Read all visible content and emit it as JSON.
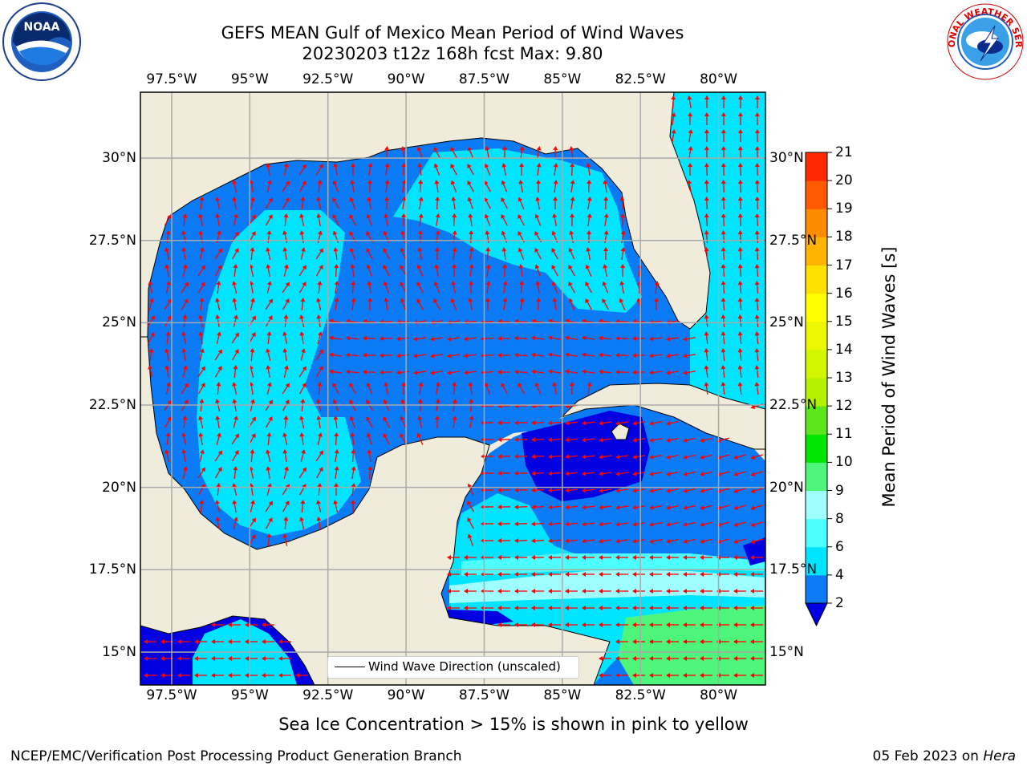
{
  "title": {
    "line1": "GEFS MEAN Gulf of Mexico Mean Period of Wind Waves",
    "line2": "20230203 t12z 168h fcst   Max: 9.80"
  },
  "map": {
    "lon_range": [
      -98.5,
      -78.5
    ],
    "lat_range": [
      14.0,
      32.0
    ],
    "lon_ticks": [
      "97.5°W",
      "95°W",
      "92.5°W",
      "90°W",
      "87.5°W",
      "85°W",
      "82.5°W",
      "80°W"
    ],
    "lon_values": [
      -97.5,
      -95,
      -92.5,
      -90,
      -87.5,
      -85,
      -82.5,
      -80
    ],
    "lat_ticks": [
      "15°N",
      "17.5°N",
      "20°N",
      "22.5°N",
      "25°N",
      "27.5°N",
      "30°N"
    ],
    "lat_values": [
      15,
      17.5,
      20,
      22.5,
      25,
      27.5,
      30
    ],
    "land_color": "#efecdc",
    "grid": true,
    "legend": {
      "label": "Wind Wave Direction (unscaled)",
      "placement": "lower-center"
    }
  },
  "colorbar": {
    "label": "Mean Period of Wind Waves [s]",
    "ticks": [
      "2",
      "4",
      "6",
      "8",
      "9",
      "10",
      "11",
      "12",
      "13",
      "14",
      "15",
      "16",
      "17",
      "18",
      "19",
      "20",
      "21"
    ],
    "levels": [
      2,
      4,
      6,
      8,
      9,
      10,
      11,
      12,
      13,
      14,
      15,
      16,
      17,
      18,
      19,
      20,
      21
    ],
    "colors": [
      "#0a7af5",
      "#00e5ff",
      "#4dffff",
      "#9fffff",
      "#4df57a",
      "#00e600",
      "#5ae61a",
      "#b4f000",
      "#d2f500",
      "#eaf700",
      "#ffff00",
      "#ffe100",
      "#ffb400",
      "#ff8c00",
      "#ff5a00",
      "#ff2a00"
    ],
    "extend_min_color": "#0000e0"
  },
  "note": "Sea Ice Concentration > 15% is shown in pink to yellow",
  "footer": {
    "left": "NCEP/EMC/Verification Post Processing Product Generation Branch",
    "right_prefix": "05 Feb 2023 on ",
    "right_machine": "Hera"
  },
  "logos": {
    "left": "NOAA",
    "right": "NATIONAL WEATHER SERVICE"
  },
  "colors": {
    "arrow": "#ff0000",
    "grid": "#aaaaaa",
    "coast": "#000000"
  }
}
